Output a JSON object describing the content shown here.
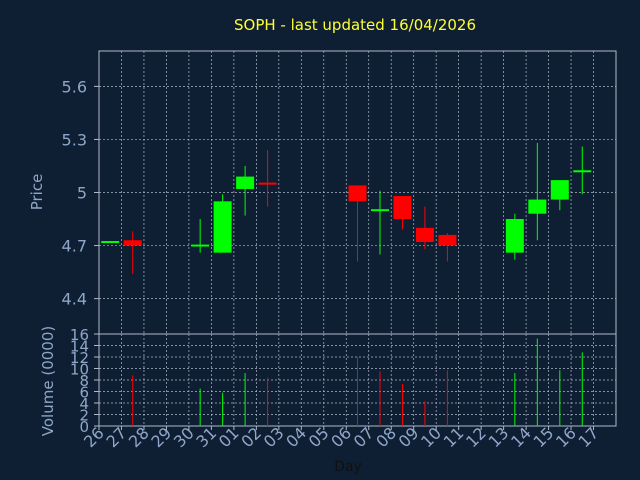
{
  "title": "SOPH - last updated 16/04/2026",
  "chart_data": [
    {
      "type": "candlestick",
      "ylabel": "Price",
      "ylim": [
        4.2,
        5.8
      ],
      "y_ticks": [
        4.4,
        4.7,
        5,
        5.3,
        5.6
      ],
      "y_tick_labels": [
        "4.4",
        "4.7",
        "5",
        "5.3",
        "5.6"
      ],
      "grid": true,
      "colors": {
        "up": "#00ff00",
        "down": "#ff0000",
        "background": "#0f1f33",
        "grid": "#b0b8c8",
        "title": "#ffff33",
        "tick_text": "#8fa6c8"
      },
      "candles": [
        {
          "day": "26",
          "open": 4.72,
          "high": 4.72,
          "low": 4.72,
          "close": 4.72
        },
        {
          "day": "27",
          "open": 4.73,
          "high": 4.78,
          "low": 4.54,
          "close": 4.7
        },
        {
          "day": "30",
          "open": 4.69,
          "high": 4.85,
          "low": 4.66,
          "close": 4.7
        },
        {
          "day": "31",
          "open": 4.66,
          "high": 4.99,
          "low": 4.66,
          "close": 4.95
        },
        {
          "day": "01",
          "open": 5.02,
          "high": 5.15,
          "low": 4.87,
          "close": 5.09
        },
        {
          "day": "02",
          "open": 5.05,
          "high": 5.24,
          "low": 4.92,
          "close": 5.04
        },
        {
          "day": "06",
          "open": 5.04,
          "high": 5.04,
          "low": 4.61,
          "close": 4.95
        },
        {
          "day": "07",
          "open": 4.9,
          "high": 5.01,
          "low": 4.65,
          "close": 4.9
        },
        {
          "day": "08",
          "open": 4.98,
          "high": 4.98,
          "low": 4.79,
          "close": 4.85
        },
        {
          "day": "09",
          "open": 4.8,
          "high": 4.92,
          "low": 4.68,
          "close": 4.72
        },
        {
          "day": "10",
          "open": 4.76,
          "high": 4.77,
          "low": 4.61,
          "close": 4.7
        },
        {
          "day": "13",
          "open": 4.66,
          "high": 4.88,
          "low": 4.62,
          "close": 4.85
        },
        {
          "day": "14",
          "open": 4.88,
          "high": 5.28,
          "low": 4.73,
          "close": 4.96
        },
        {
          "day": "15",
          "open": 4.96,
          "high": 5.07,
          "low": 4.9,
          "close": 5.07
        },
        {
          "day": "16",
          "open": 5.11,
          "high": 5.26,
          "low": 4.99,
          "close": 5.12
        }
      ]
    },
    {
      "type": "bar",
      "xlabel": "Day",
      "ylabel": "Volume (0000)",
      "ylim": [
        0,
        16
      ],
      "y_ticks": [
        0,
        2,
        4,
        6,
        8,
        10,
        12,
        14,
        16
      ],
      "y_tick_labels": [
        "0",
        "2",
        "4",
        "6",
        "8",
        "10",
        "12",
        "14",
        "16"
      ],
      "categories": [
        "26",
        "27",
        "28",
        "29",
        "30",
        "31",
        "01",
        "02",
        "03",
        "04",
        "05",
        "06",
        "07",
        "08",
        "09",
        "10",
        "11",
        "12",
        "13",
        "14",
        "15",
        "16",
        "17"
      ],
      "values": [
        {
          "day": "27",
          "value": 8.8,
          "direction": "down"
        },
        {
          "day": "30",
          "value": 6.5,
          "direction": "up"
        },
        {
          "day": "31",
          "value": 5.8,
          "direction": "up"
        },
        {
          "day": "01",
          "value": 9.2,
          "direction": "up"
        },
        {
          "day": "02",
          "value": 8.4,
          "direction": "down"
        },
        {
          "day": "06",
          "value": 12.0,
          "direction": "down"
        },
        {
          "day": "07",
          "value": 9.5,
          "direction": "down"
        },
        {
          "day": "08",
          "value": 7.3,
          "direction": "down"
        },
        {
          "day": "09",
          "value": 4.3,
          "direction": "down"
        },
        {
          "day": "10",
          "value": 9.7,
          "direction": "down"
        },
        {
          "day": "13",
          "value": 9.2,
          "direction": "up"
        },
        {
          "day": "14",
          "value": 15.2,
          "direction": "up"
        },
        {
          "day": "15",
          "value": 9.7,
          "direction": "up"
        },
        {
          "day": "16",
          "value": 12.8,
          "direction": "up"
        }
      ]
    }
  ]
}
